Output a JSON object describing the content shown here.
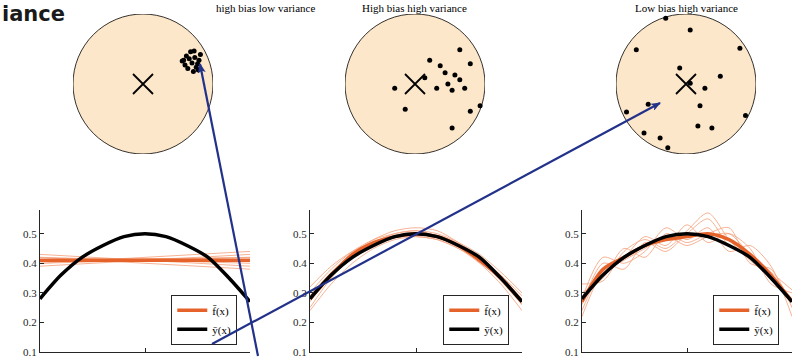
{
  "heading": "iance",
  "chart_data": [
    {
      "type": "scatter",
      "title": "high bias low variance",
      "xlim": [
        -1,
        1
      ],
      "ylim": [
        -1,
        1
      ],
      "tick_labels": false,
      "grid": false,
      "series": [
        {
          "marker": "x",
          "color": "#000000",
          "x": [
            0
          ],
          "values": [
            0
          ]
        },
        {
          "marker": "circle",
          "color": "#000000",
          "x": [
            0.62,
            0.68,
            0.74,
            0.58,
            0.7,
            0.8,
            0.76,
            0.6,
            0.82,
            0.66,
            0.78,
            0.64,
            0.72,
            0.79,
            0.56,
            0.73
          ],
          "values": [
            0.4,
            0.46,
            0.38,
            0.34,
            0.3,
            0.34,
            0.24,
            0.27,
            0.42,
            0.36,
            0.29,
            0.22,
            0.18,
            0.2,
            0.33,
            0.47
          ]
        }
      ]
    },
    {
      "type": "scatter",
      "title": "High bias high variance",
      "xlim": [
        -1,
        1
      ],
      "ylim": [
        -1,
        1
      ],
      "tick_labels": false,
      "grid": false,
      "series": [
        {
          "marker": "x",
          "color": "#000000",
          "x": [
            0
          ],
          "values": [
            0
          ]
        },
        {
          "marker": "circle",
          "color": "#000000",
          "x": [
            0.36,
            0.43,
            0.57,
            0.64,
            0.47,
            0.31,
            0.53,
            0.71,
            0.79,
            0.21,
            0.93,
            0.79,
            -0.14,
            0.53,
            -0.29,
            0.64,
            0.14
          ],
          "values": [
            0.26,
            0.16,
            0.13,
            0.06,
            0.0,
            -0.06,
            -0.09,
            -0.06,
            0.29,
            0.34,
            -0.31,
            -0.39,
            -0.36,
            -0.63,
            -0.06,
            0.49,
            0.09
          ]
        }
      ]
    },
    {
      "type": "scatter",
      "title": "Low bias high variance",
      "xlim": [
        -1,
        1
      ],
      "ylim": [
        -1,
        1
      ],
      "tick_labels": false,
      "grid": false,
      "series": [
        {
          "marker": "x",
          "color": "#000000",
          "x": [
            0
          ],
          "values": [
            0
          ]
        },
        {
          "marker": "circle",
          "color": "#000000",
          "x": [
            -0.29,
            0.06,
            -0.71,
            -0.09,
            0.2,
            0.17,
            0.37,
            -0.6,
            -0.26,
            0.85,
            -0.54,
            -0.37,
            0.27,
            0.49,
            -0.85,
            0.06,
            0.77
          ],
          "values": [
            0.94,
            0.77,
            0.49,
            0.23,
            -0.31,
            -0.6,
            -0.63,
            -0.7,
            -0.91,
            -0.45,
            -0.29,
            -0.77,
            -0.06,
            0.11,
            -0.4,
            0.01,
            0.51
          ]
        }
      ]
    },
    {
      "type": "line",
      "xlim": [
        0,
        1
      ],
      "ylim": [
        0.1,
        0.58
      ],
      "xticks": [
        0,
        0.5,
        1
      ],
      "yticks": [
        0.1,
        0.2,
        0.3,
        0.4,
        0.5
      ],
      "tick_labels": "y",
      "grid": false,
      "legend": "lower right",
      "series": [
        {
          "color": "#f4a582",
          "x": [
            0,
            1
          ],
          "values": [
            0.4,
            0.42
          ]
        },
        {
          "color": "#f4a582",
          "x": [
            0,
            1
          ],
          "values": [
            0.42,
            0.4
          ]
        },
        {
          "color": "#f4a582",
          "x": [
            0,
            1
          ],
          "values": [
            0.39,
            0.43
          ]
        },
        {
          "color": "#f4a582",
          "x": [
            0,
            1
          ],
          "values": [
            0.41,
            0.41
          ]
        },
        {
          "color": "#f4a582",
          "x": [
            0,
            1
          ],
          "values": [
            0.43,
            0.39
          ]
        },
        {
          "color": "#f4a582",
          "x": [
            0,
            1
          ],
          "values": [
            0.4,
            0.44
          ]
        },
        {
          "color": "#f4a582",
          "x": [
            0,
            1
          ],
          "values": [
            0.42,
            0.38
          ]
        },
        {
          "color": "#f4a582",
          "x": [
            0,
            1
          ],
          "values": [
            0.41,
            0.42
          ]
        },
        {
          "name": "f̄(x)",
          "color": "#e5632a",
          "x": [
            0,
            1
          ],
          "values": [
            0.41,
            0.41
          ]
        },
        {
          "name": "ȳ(x)",
          "color": "#000000",
          "x": [
            0,
            0.1,
            0.2,
            0.3,
            0.4,
            0.5,
            0.6,
            0.7,
            0.8,
            0.9,
            1
          ],
          "values": [
            0.28,
            0.36,
            0.42,
            0.46,
            0.49,
            0.5,
            0.49,
            0.46,
            0.42,
            0.35,
            0.27
          ]
        }
      ]
    },
    {
      "type": "line",
      "xlim": [
        0,
        1
      ],
      "ylim": [
        0.1,
        0.58
      ],
      "xticks": [
        0,
        0.5,
        1
      ],
      "yticks": [
        0.1,
        0.2,
        0.3,
        0.4,
        0.5
      ],
      "tick_labels": "y",
      "grid": false,
      "legend": "lower right",
      "series": [
        {
          "color": "#f4a582",
          "x": [
            0,
            0.1,
            0.2,
            0.3,
            0.4,
            0.5,
            0.6,
            0.7,
            0.8,
            0.9,
            1
          ],
          "values": [
            0.24,
            0.33,
            0.4,
            0.45,
            0.48,
            0.49,
            0.48,
            0.45,
            0.4,
            0.33,
            0.24
          ]
        },
        {
          "color": "#f4a582",
          "x": [
            0,
            0.1,
            0.2,
            0.3,
            0.4,
            0.5,
            0.6,
            0.7,
            0.8,
            0.9,
            1
          ],
          "values": [
            0.3,
            0.38,
            0.44,
            0.48,
            0.5,
            0.51,
            0.5,
            0.47,
            0.43,
            0.37,
            0.3
          ]
        },
        {
          "color": "#f4a582",
          "x": [
            0,
            0.1,
            0.2,
            0.3,
            0.4,
            0.5,
            0.6,
            0.7,
            0.8,
            0.9,
            1
          ],
          "values": [
            0.27,
            0.36,
            0.43,
            0.48,
            0.51,
            0.52,
            0.51,
            0.47,
            0.42,
            0.35,
            0.26
          ]
        },
        {
          "color": "#f4a582",
          "x": [
            0,
            0.1,
            0.2,
            0.3,
            0.4,
            0.5,
            0.6,
            0.7,
            0.8,
            0.9,
            1
          ],
          "values": [
            0.32,
            0.39,
            0.44,
            0.47,
            0.49,
            0.49,
            0.48,
            0.45,
            0.41,
            0.35,
            0.28
          ]
        },
        {
          "color": "#f4a582",
          "x": [
            0,
            0.1,
            0.2,
            0.3,
            0.4,
            0.5,
            0.6,
            0.7,
            0.8,
            0.9,
            1
          ],
          "values": [
            0.25,
            0.35,
            0.42,
            0.47,
            0.5,
            0.51,
            0.49,
            0.46,
            0.41,
            0.34,
            0.26
          ]
        },
        {
          "color": "#f4a582",
          "x": [
            0,
            0.1,
            0.2,
            0.3,
            0.4,
            0.5,
            0.6,
            0.7,
            0.8,
            0.9,
            1
          ],
          "values": [
            0.29,
            0.37,
            0.43,
            0.47,
            0.49,
            0.5,
            0.49,
            0.46,
            0.42,
            0.36,
            0.29
          ]
        },
        {
          "name": "f̄(x)",
          "color": "#e5632a",
          "x": [
            0,
            0.1,
            0.2,
            0.3,
            0.4,
            0.5,
            0.6,
            0.7,
            0.8,
            0.9,
            1
          ],
          "values": [
            0.28,
            0.36,
            0.43,
            0.47,
            0.49,
            0.5,
            0.49,
            0.46,
            0.41,
            0.35,
            0.27
          ]
        },
        {
          "name": "ȳ(x)",
          "color": "#000000",
          "x": [
            0,
            0.1,
            0.2,
            0.3,
            0.4,
            0.5,
            0.6,
            0.7,
            0.8,
            0.9,
            1
          ],
          "values": [
            0.28,
            0.36,
            0.42,
            0.46,
            0.49,
            0.5,
            0.49,
            0.46,
            0.42,
            0.35,
            0.27
          ]
        }
      ]
    },
    {
      "type": "line",
      "xlim": [
        0,
        1
      ],
      "ylim": [
        0.1,
        0.58
      ],
      "xticks": [
        0,
        0.5,
        1
      ],
      "yticks": [
        0.1,
        0.2,
        0.3,
        0.4,
        0.5
      ],
      "tick_labels": "y",
      "grid": false,
      "legend": "lower right",
      "series": [
        {
          "color": "#f4a582",
          "x": [
            0,
            0.1,
            0.2,
            0.3,
            0.4,
            0.5,
            0.6,
            0.7,
            0.8,
            0.9,
            1
          ],
          "values": [
            0.26,
            0.4,
            0.38,
            0.47,
            0.44,
            0.5,
            0.55,
            0.46,
            0.43,
            0.36,
            0.28
          ]
        },
        {
          "color": "#f4a582",
          "x": [
            0,
            0.1,
            0.2,
            0.3,
            0.4,
            0.5,
            0.6,
            0.7,
            0.8,
            0.9,
            1
          ],
          "values": [
            0.3,
            0.35,
            0.45,
            0.42,
            0.5,
            0.47,
            0.5,
            0.52,
            0.4,
            0.38,
            0.25
          ]
        },
        {
          "color": "#f4a582",
          "x": [
            0,
            0.1,
            0.2,
            0.3,
            0.4,
            0.5,
            0.6,
            0.7,
            0.8,
            0.9,
            1
          ],
          "values": [
            0.24,
            0.38,
            0.42,
            0.49,
            0.46,
            0.53,
            0.47,
            0.5,
            0.45,
            0.33,
            0.3
          ]
        },
        {
          "color": "#f4a582",
          "x": [
            0,
            0.1,
            0.2,
            0.3,
            0.4,
            0.5,
            0.6,
            0.7,
            0.8,
            0.9,
            1
          ],
          "values": [
            0.28,
            0.42,
            0.4,
            0.44,
            0.52,
            0.48,
            0.52,
            0.44,
            0.46,
            0.39,
            0.22
          ]
        },
        {
          "color": "#f4a582",
          "x": [
            0,
            0.1,
            0.2,
            0.3,
            0.4,
            0.5,
            0.6,
            0.7,
            0.8,
            0.9,
            1
          ],
          "values": [
            0.33,
            0.34,
            0.44,
            0.48,
            0.45,
            0.51,
            0.57,
            0.48,
            0.41,
            0.35,
            0.27
          ]
        },
        {
          "color": "#f4a582",
          "x": [
            0,
            0.1,
            0.2,
            0.3,
            0.4,
            0.5,
            0.6,
            0.7,
            0.8,
            0.9,
            1
          ],
          "values": [
            0.22,
            0.37,
            0.41,
            0.45,
            0.49,
            0.46,
            0.49,
            0.5,
            0.43,
            0.37,
            0.31
          ]
        },
        {
          "name": "f̄(x)",
          "color": "#e5632a",
          "x": [
            0,
            0.1,
            0.2,
            0.3,
            0.4,
            0.5,
            0.6,
            0.7,
            0.8,
            0.9,
            1
          ],
          "values": [
            0.27,
            0.38,
            0.42,
            0.46,
            0.48,
            0.49,
            0.5,
            0.48,
            0.43,
            0.36,
            0.27
          ]
        },
        {
          "name": "ȳ(x)",
          "color": "#000000",
          "x": [
            0,
            0.1,
            0.2,
            0.3,
            0.4,
            0.5,
            0.6,
            0.7,
            0.8,
            0.9,
            1
          ],
          "values": [
            0.28,
            0.36,
            0.42,
            0.46,
            0.49,
            0.5,
            0.49,
            0.46,
            0.42,
            0.35,
            0.27
          ]
        }
      ]
    }
  ]
}
